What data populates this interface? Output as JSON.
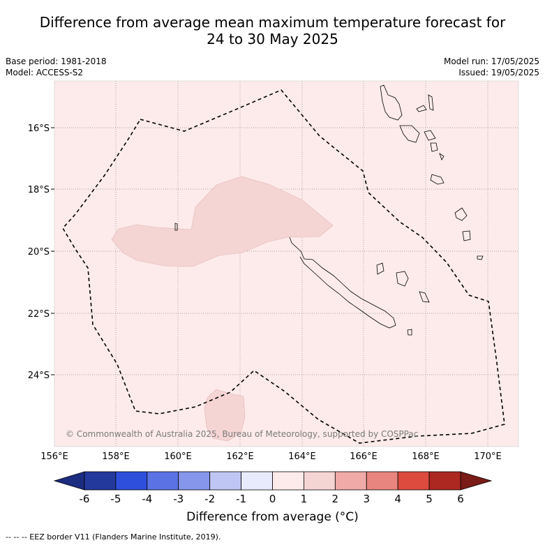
{
  "title_line1": "Difference from average mean maximum temperature forecast for",
  "title_line2": "24 to 30 May 2025",
  "meta_left": {
    "base_period": "Base period: 1981-2018",
    "model": "Model: ACCESS-S2"
  },
  "meta_right": {
    "model_run": "Model run: 17/05/2025",
    "issued": "Issued: 19/05/2025"
  },
  "map": {
    "lon_ticks": [
      "156°E",
      "158°E",
      "160°E",
      "162°E",
      "164°E",
      "166°E",
      "168°E",
      "170°E"
    ],
    "lat_ticks": [
      "16°S",
      "18°S",
      "20°S",
      "22°S",
      "24°S"
    ],
    "copyright": "© Commonwealth of Australia 2025, Bureau of Meteorology, supported by COSPPac",
    "background_color": "#fcebea",
    "anomaly_fill_color": "#f5d5d4"
  },
  "colorbar": {
    "ticks": [
      "-6",
      "-5",
      "-4",
      "-3",
      "-2",
      "-1",
      "0",
      "1",
      "2",
      "3",
      "4",
      "5",
      "6"
    ],
    "colors": [
      "#23399c",
      "#2e4fdc",
      "#5a72e4",
      "#8696ea",
      "#c0c6f4",
      "#e8ebfb",
      "#fcebea",
      "#f5d5d4",
      "#f0aaa7",
      "#e8857e",
      "#dc4b3e",
      "#ac2821"
    ],
    "low_color": "#1c2c80",
    "high_color": "#7a1b17",
    "label": "Difference from average (°C)"
  },
  "legend_note": "--  --  -- EEZ border V11 (Flanders Marine Institute, 2019)."
}
